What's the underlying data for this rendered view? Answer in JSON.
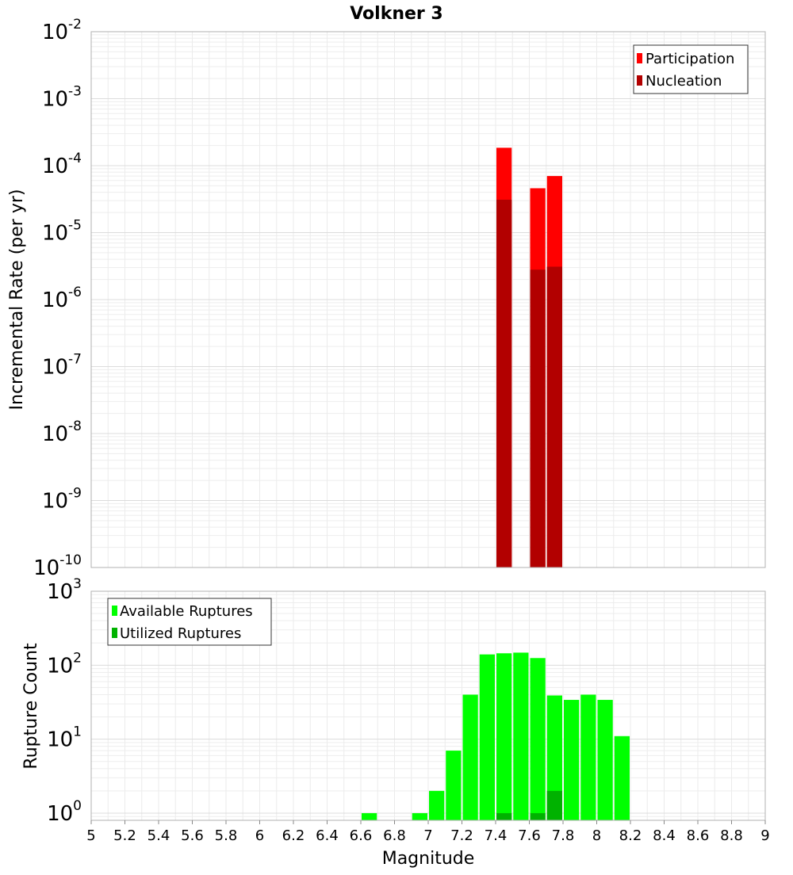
{
  "title": "Volkner 3",
  "xlabel": "Magnitude",
  "x_ticks": [
    "5",
    "5.2",
    "5.4",
    "5.6",
    "5.8",
    "6",
    "6.2",
    "6.4",
    "6.6",
    "6.8",
    "7",
    "7.2",
    "7.4",
    "7.6",
    "7.8",
    "8",
    "8.2",
    "8.4",
    "8.6",
    "8.8",
    "9"
  ],
  "chart_data": [
    {
      "type": "bar",
      "ylabel": "Incremental Rate (per yr)",
      "y_scale": "log",
      "xlim": [
        5,
        9
      ],
      "ylim": [
        1e-10,
        0.01
      ],
      "y_tick_exponents": [
        "-10",
        "-9",
        "-8",
        "-7",
        "-6",
        "-5",
        "-4",
        "-3",
        "-2"
      ],
      "legend_position": "top-right",
      "grid": true,
      "series": [
        {
          "name": "Participation",
          "color": "#ff0000",
          "x": [
            7.45,
            7.65,
            7.75
          ],
          "values": [
            0.000185,
            4.6e-05,
            7e-05
          ]
        },
        {
          "name": "Nucleation",
          "color": "#b20000",
          "x": [
            7.45,
            7.65,
            7.75
          ],
          "values": [
            3.1e-05,
            2.8e-06,
            3.1e-06
          ]
        }
      ]
    },
    {
      "type": "bar",
      "ylabel": "Rupture Count",
      "y_scale": "log",
      "xlim": [
        5,
        9
      ],
      "ylim": [
        0.8,
        1000
      ],
      "y_tick_exponents": [
        "0",
        "1",
        "2",
        "3"
      ],
      "legend_position": "top-left",
      "grid": true,
      "series": [
        {
          "name": "Available Ruptures",
          "color": "#00ff00",
          "x": [
            6.65,
            6.95,
            7.05,
            7.15,
            7.25,
            7.35,
            7.45,
            7.55,
            7.65,
            7.75,
            7.85,
            7.95,
            8.05,
            8.15
          ],
          "values": [
            1,
            1,
            2,
            7,
            40,
            140,
            145,
            148,
            125,
            39,
            34,
            40,
            34,
            11
          ]
        },
        {
          "name": "Utilized Ruptures",
          "color": "#00b200",
          "x": [
            7.45,
            7.65,
            7.75
          ],
          "values": [
            1,
            1,
            2
          ]
        }
      ]
    }
  ]
}
